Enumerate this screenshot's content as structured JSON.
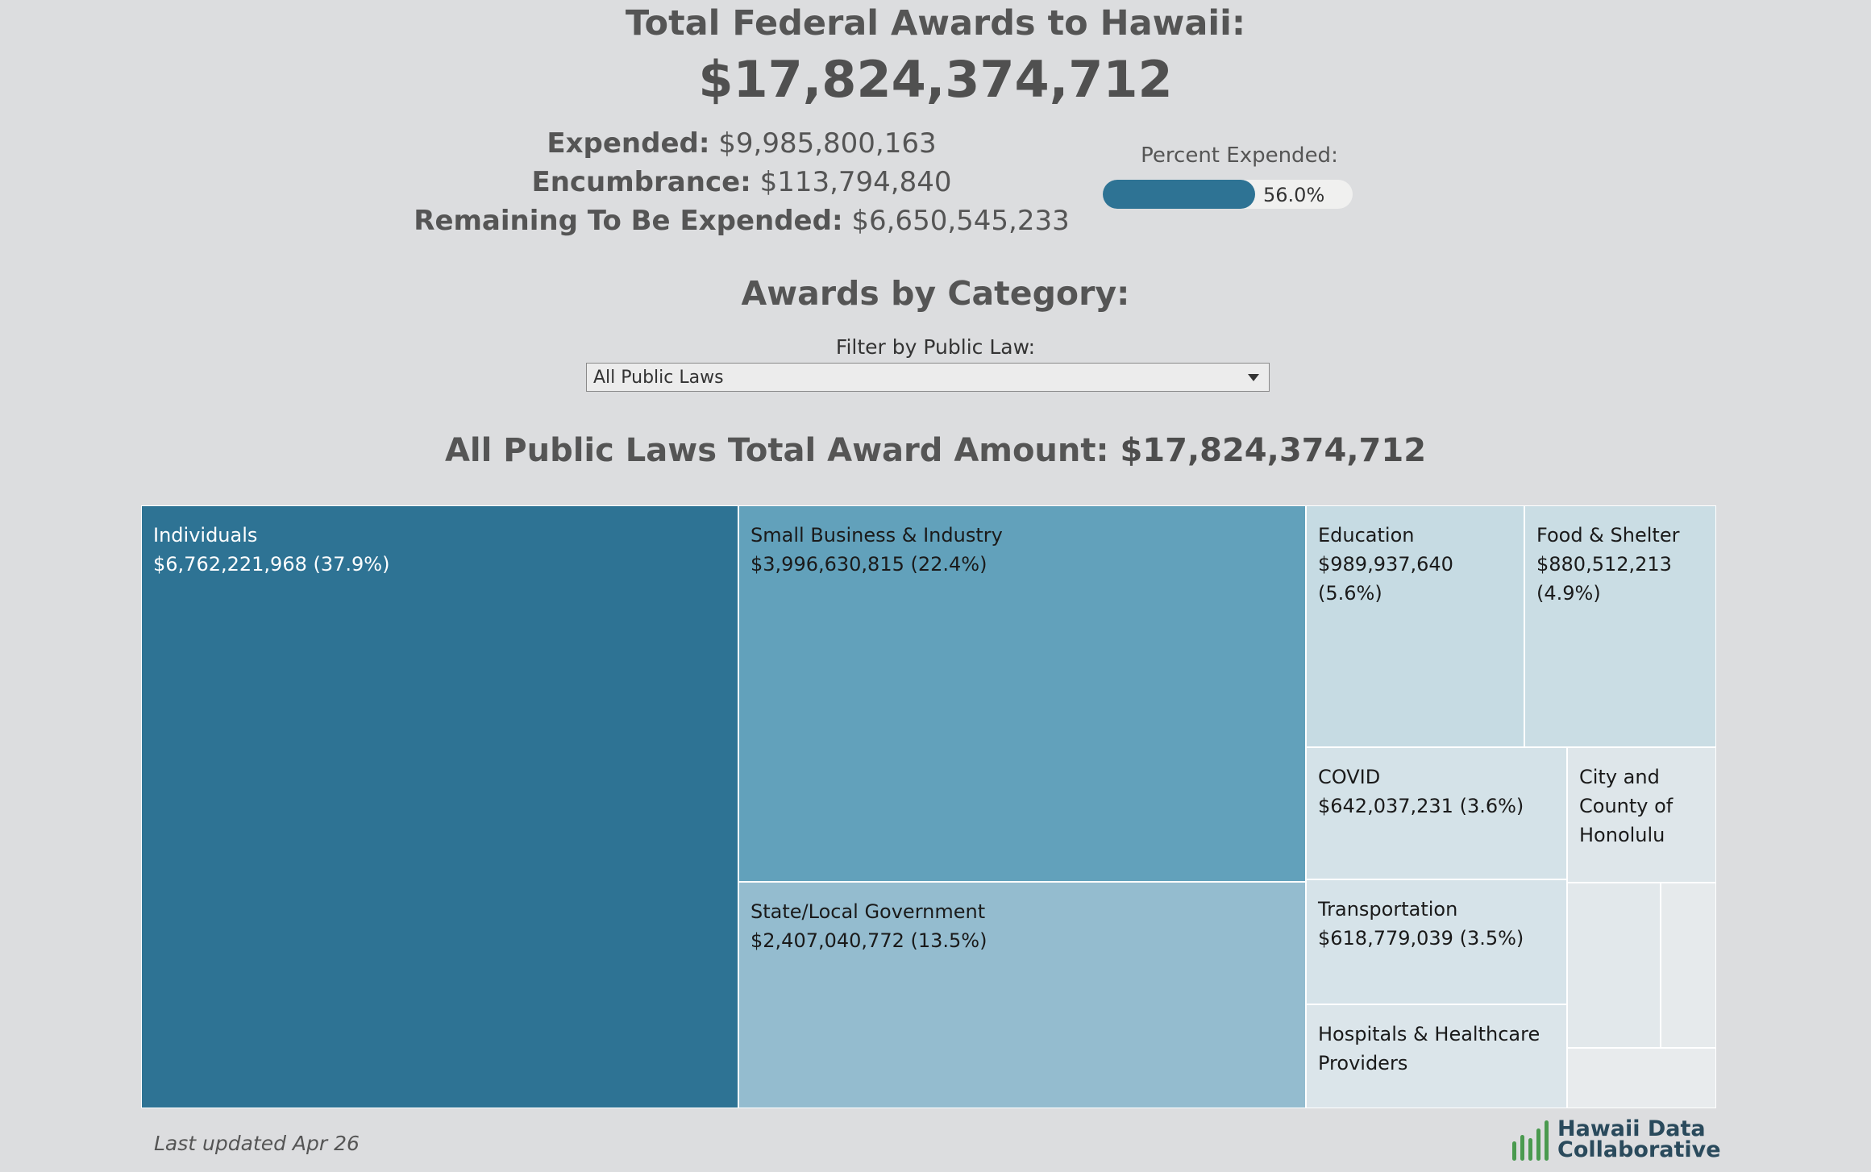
{
  "header": {
    "title": "Total Federal Awards to Hawaii:",
    "total": "$17,824,374,712"
  },
  "summary": {
    "expended_label": "Expended:",
    "expended_value": "$9,985,800,163",
    "encumbrance_label": "Encumbrance:",
    "encumbrance_value": "$113,794,840",
    "remaining_label": "Remaining To Be Expended:",
    "remaining_value": "$6,650,545,233"
  },
  "percent_expended": {
    "label": "Percent Expended:",
    "value": 0.56,
    "display": "56.0%"
  },
  "category_section": {
    "heading": "Awards by Category:",
    "filter_label": "Filter by Public Law:",
    "filter_value": "All Public Laws",
    "total_label": "All Public Laws Total Award Amount:",
    "total_value": "$17,824,374,712"
  },
  "chart_data": {
    "type": "treemap",
    "title": "Awards by Category",
    "total": 17824374712,
    "items": [
      {
        "name": "Individuals",
        "value": 6762221968,
        "amount_label": "$6,762,221,968 (37.9%)",
        "percent": 37.9,
        "color": "#2e7394",
        "text_color": "#ffffff"
      },
      {
        "name": "Small Business & Industry",
        "value": 3996630815,
        "amount_label": "$3,996,630,815 (22.4%)",
        "percent": 22.4,
        "color": "#62a1bb",
        "text_color": "#1a1a1a"
      },
      {
        "name": "State/Local Government",
        "value": 2407040772,
        "amount_label": "$2,407,040,772 (13.5%)",
        "percent": 13.5,
        "color": "#94bccf",
        "text_color": "#1a1a1a"
      },
      {
        "name": "Education",
        "value": 989937640,
        "amount_label": "$989,937,640 (5.6%)",
        "percent": 5.6,
        "color": "#c6dbe3",
        "text_color": "#1a1a1a"
      },
      {
        "name": "Food & Shelter",
        "value": 880512213,
        "amount_label": "$880,512,213 (4.9%)",
        "percent": 4.9,
        "color": "#cadde4",
        "text_color": "#1a1a1a"
      },
      {
        "name": "COVID",
        "value": 642037231,
        "amount_label": "$642,037,231 (3.6%)",
        "percent": 3.6,
        "color": "#d4e2e8",
        "text_color": "#1a1a1a"
      },
      {
        "name": "Transportation",
        "value": 618779039,
        "amount_label": "$618,779,039 (3.5%)",
        "percent": 3.5,
        "color": "#d6e3e9",
        "text_color": "#1a1a1a"
      },
      {
        "name": "Hospitals & Healthcare Providers",
        "value": null,
        "amount_label": "",
        "color": "#dbe5ea",
        "text_color": "#1a1a1a"
      },
      {
        "name": "City and County of Honolulu",
        "value": null,
        "amount_label": "",
        "color": "#dee6ea",
        "text_color": "#1a1a1a"
      },
      {
        "name": "",
        "value": null,
        "amount_label": "",
        "color": "#e2e8eb",
        "text_color": "#1a1a1a"
      },
      {
        "name": "",
        "value": null,
        "amount_label": "",
        "color": "#e6eaec",
        "text_color": "#1a1a1a"
      },
      {
        "name": "",
        "value": null,
        "amount_label": "",
        "color": "#e8ebed",
        "text_color": "#1a1a1a"
      }
    ]
  },
  "footer": {
    "last_updated": "Last updated Apr 26",
    "logo_line1": "Hawaii Data",
    "logo_line2": "Collaborative",
    "logo_color": "#4a9a4f"
  }
}
